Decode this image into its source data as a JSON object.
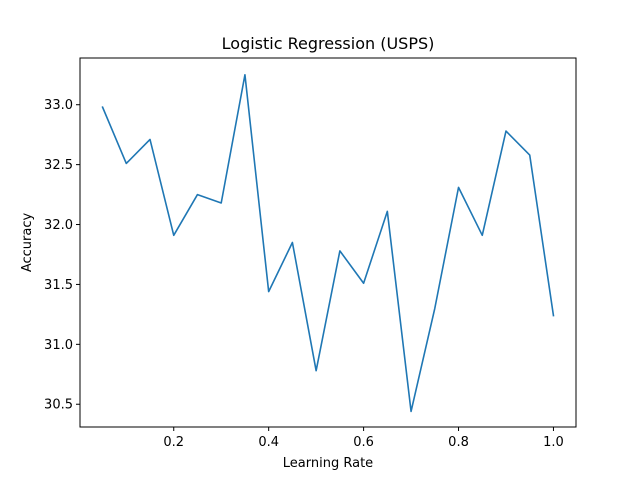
{
  "chart_data": {
    "type": "line",
    "title": "Logistic Regression (USPS)",
    "xlabel": "Learning Rate",
    "ylabel": "Accuracy",
    "xlim": [
      0.0025,
      1.0475
    ],
    "ylim": [
      30.31,
      33.39
    ],
    "xticks": [
      0.2,
      0.4,
      0.6,
      0.8,
      1.0
    ],
    "xtick_labels": [
      "0.2",
      "0.4",
      "0.6",
      "0.8",
      "1.0"
    ],
    "yticks": [
      30.5,
      31.0,
      31.5,
      32.0,
      32.5,
      33.0
    ],
    "ytick_labels": [
      "30.5",
      "31.0",
      "31.5",
      "32.0",
      "32.5",
      "33.0"
    ],
    "grid": false,
    "series": [
      {
        "color": "#1f77b4",
        "x": [
          0.05,
          0.1,
          0.15,
          0.2,
          0.25,
          0.3,
          0.35,
          0.4,
          0.45,
          0.5,
          0.55,
          0.6,
          0.65,
          0.7,
          0.75,
          0.8,
          0.85,
          0.9,
          0.95,
          1.0
        ],
        "values": [
          32.98,
          32.51,
          32.71,
          31.91,
          32.25,
          32.18,
          33.25,
          31.44,
          31.85,
          30.78,
          31.78,
          31.51,
          32.11,
          30.44,
          31.3,
          32.31,
          31.91,
          32.78,
          32.58,
          31.24
        ]
      }
    ]
  }
}
